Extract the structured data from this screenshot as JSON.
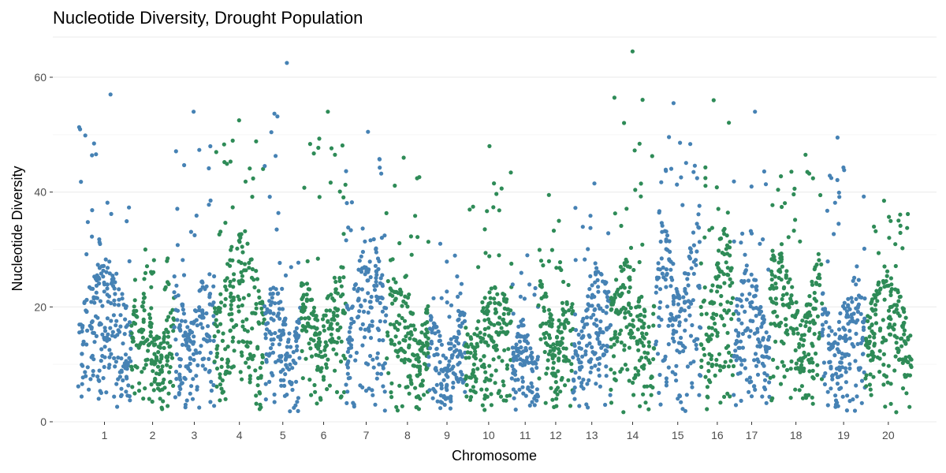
{
  "chart_data": {
    "type": "scatter",
    "title": "Nucleotide Diversity, Drought Population",
    "xlabel": "Chromosome",
    "ylabel": "Nucleotide Diversity",
    "ylim": [
      0,
      67
    ],
    "yticks": [
      0,
      20,
      40,
      60
    ],
    "grid": true,
    "legend": "none",
    "colors": [
      "#4682b4",
      "#2e8b57"
    ],
    "categories": [
      "1",
      "2",
      "3",
      "4",
      "5",
      "6",
      "7",
      "8",
      "9",
      "10",
      "11",
      "12",
      "13",
      "14",
      "15",
      "16",
      "17",
      "18",
      "19",
      "20"
    ],
    "chromosomes": [
      {
        "label": "1",
        "start": 0,
        "end": 6.2,
        "typical_max": 27,
        "max": 57.0
      },
      {
        "label": "2",
        "start": 6.2,
        "end": 11.2,
        "typical_max": 22,
        "max": 30.0
      },
      {
        "label": "3",
        "start": 11.2,
        "end": 15.9,
        "typical_max": 25,
        "max": 54.0
      },
      {
        "label": "4",
        "start": 15.9,
        "end": 21.7,
        "typical_max": 32,
        "max": 52.5
      },
      {
        "label": "5",
        "start": 21.7,
        "end": 26.0,
        "typical_max": 22,
        "max": 62.5
      },
      {
        "label": "6",
        "start": 26.0,
        "end": 31.2,
        "typical_max": 26,
        "max": 54.0
      },
      {
        "label": "7",
        "start": 31.2,
        "end": 35.9,
        "typical_max": 31,
        "max": 50.5
      },
      {
        "label": "8",
        "start": 35.9,
        "end": 40.8,
        "typical_max": 24,
        "max": 46.0
      },
      {
        "label": "9",
        "start": 40.8,
        "end": 45.1,
        "typical_max": 18,
        "max": 31.0
      },
      {
        "label": "10",
        "start": 45.1,
        "end": 50.5,
        "typical_max": 23,
        "max": 48.0
      },
      {
        "label": "11",
        "start": 50.5,
        "end": 53.6,
        "typical_max": 16,
        "max": 29.0
      },
      {
        "label": "12",
        "start": 53.6,
        "end": 57.6,
        "typical_max": 24,
        "max": 39.5
      },
      {
        "label": "13",
        "start": 57.6,
        "end": 62.0,
        "typical_max": 25,
        "max": 41.5
      },
      {
        "label": "14",
        "start": 62.0,
        "end": 67.1,
        "typical_max": 27,
        "max": 64.5
      },
      {
        "label": "15",
        "start": 67.1,
        "end": 72.5,
        "typical_max": 36,
        "max": 55.5
      },
      {
        "label": "16",
        "start": 72.5,
        "end": 76.3,
        "typical_max": 32,
        "max": 56.0
      },
      {
        "label": "17",
        "start": 76.3,
        "end": 80.5,
        "typical_max": 26,
        "max": 54.0
      },
      {
        "label": "18",
        "start": 80.5,
        "end": 86.6,
        "typical_max": 29,
        "max": 46.5
      },
      {
        "label": "19",
        "start": 86.6,
        "end": 91.6,
        "typical_max": 24,
        "max": 49.5
      },
      {
        "label": "20",
        "start": 91.6,
        "end": 97.0,
        "typical_max": 25,
        "max": 38.5
      }
    ]
  }
}
